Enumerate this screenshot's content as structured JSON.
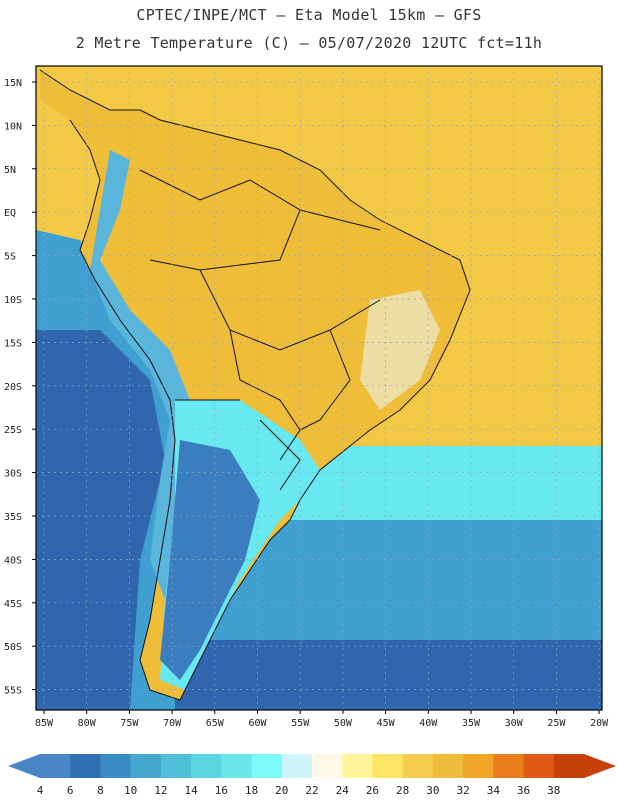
{
  "header": {
    "line1": "CPTEC/INPE/MCT –  Eta Model 15km – GFS",
    "line2": "2 Metre Temperature (C) – 05/07/2020 12UTC fct=11h"
  },
  "axes": {
    "lat_labels": [
      "15N",
      "10N",
      "5N",
      "EQ",
      "5S",
      "10S",
      "15S",
      "20S",
      "25S",
      "30S",
      "35S",
      "40S",
      "45S",
      "50S",
      "55S"
    ],
    "lon_labels": [
      "85W",
      "80W",
      "75W",
      "70W",
      "65W",
      "60W",
      "55W",
      "50W",
      "45W",
      "40W",
      "35W",
      "30W",
      "25W",
      "20W"
    ]
  },
  "colorbar": {
    "labels": [
      "4",
      "6",
      "8",
      "10",
      "12",
      "14",
      "16",
      "18",
      "20",
      "22",
      "24",
      "26",
      "28",
      "30",
      "32",
      "34",
      "36",
      "38"
    ],
    "colors": [
      "#4a86c6",
      "#2f6fb4",
      "#3a8cc4",
      "#45a8cf",
      "#4ec0d8",
      "#5bd6e0",
      "#6ae6ea",
      "#7ffafa",
      "#ccf4fa",
      "#fff8e6",
      "#fff59a",
      "#ffe566",
      "#f6cd4f",
      "#efbb3b",
      "#f0a526",
      "#ea7f1c",
      "#df5a14",
      "#c6410a"
    ],
    "low_end_color": "#4a86c6",
    "high_end_color": "#c6410a"
  },
  "map": {
    "ocean_far_color": "#2f66ad",
    "ocean_mid_color": "#3f9fd0",
    "ocean_near_color": "#68e8f0",
    "tropics_color": "#f3c845",
    "land_warm_color": "#f0bd38",
    "land_cool_color": "#e9f7fb",
    "patagonia_color": "#3a7ebf",
    "andes_color": "#5ab5da",
    "border_color": "#111111"
  }
}
